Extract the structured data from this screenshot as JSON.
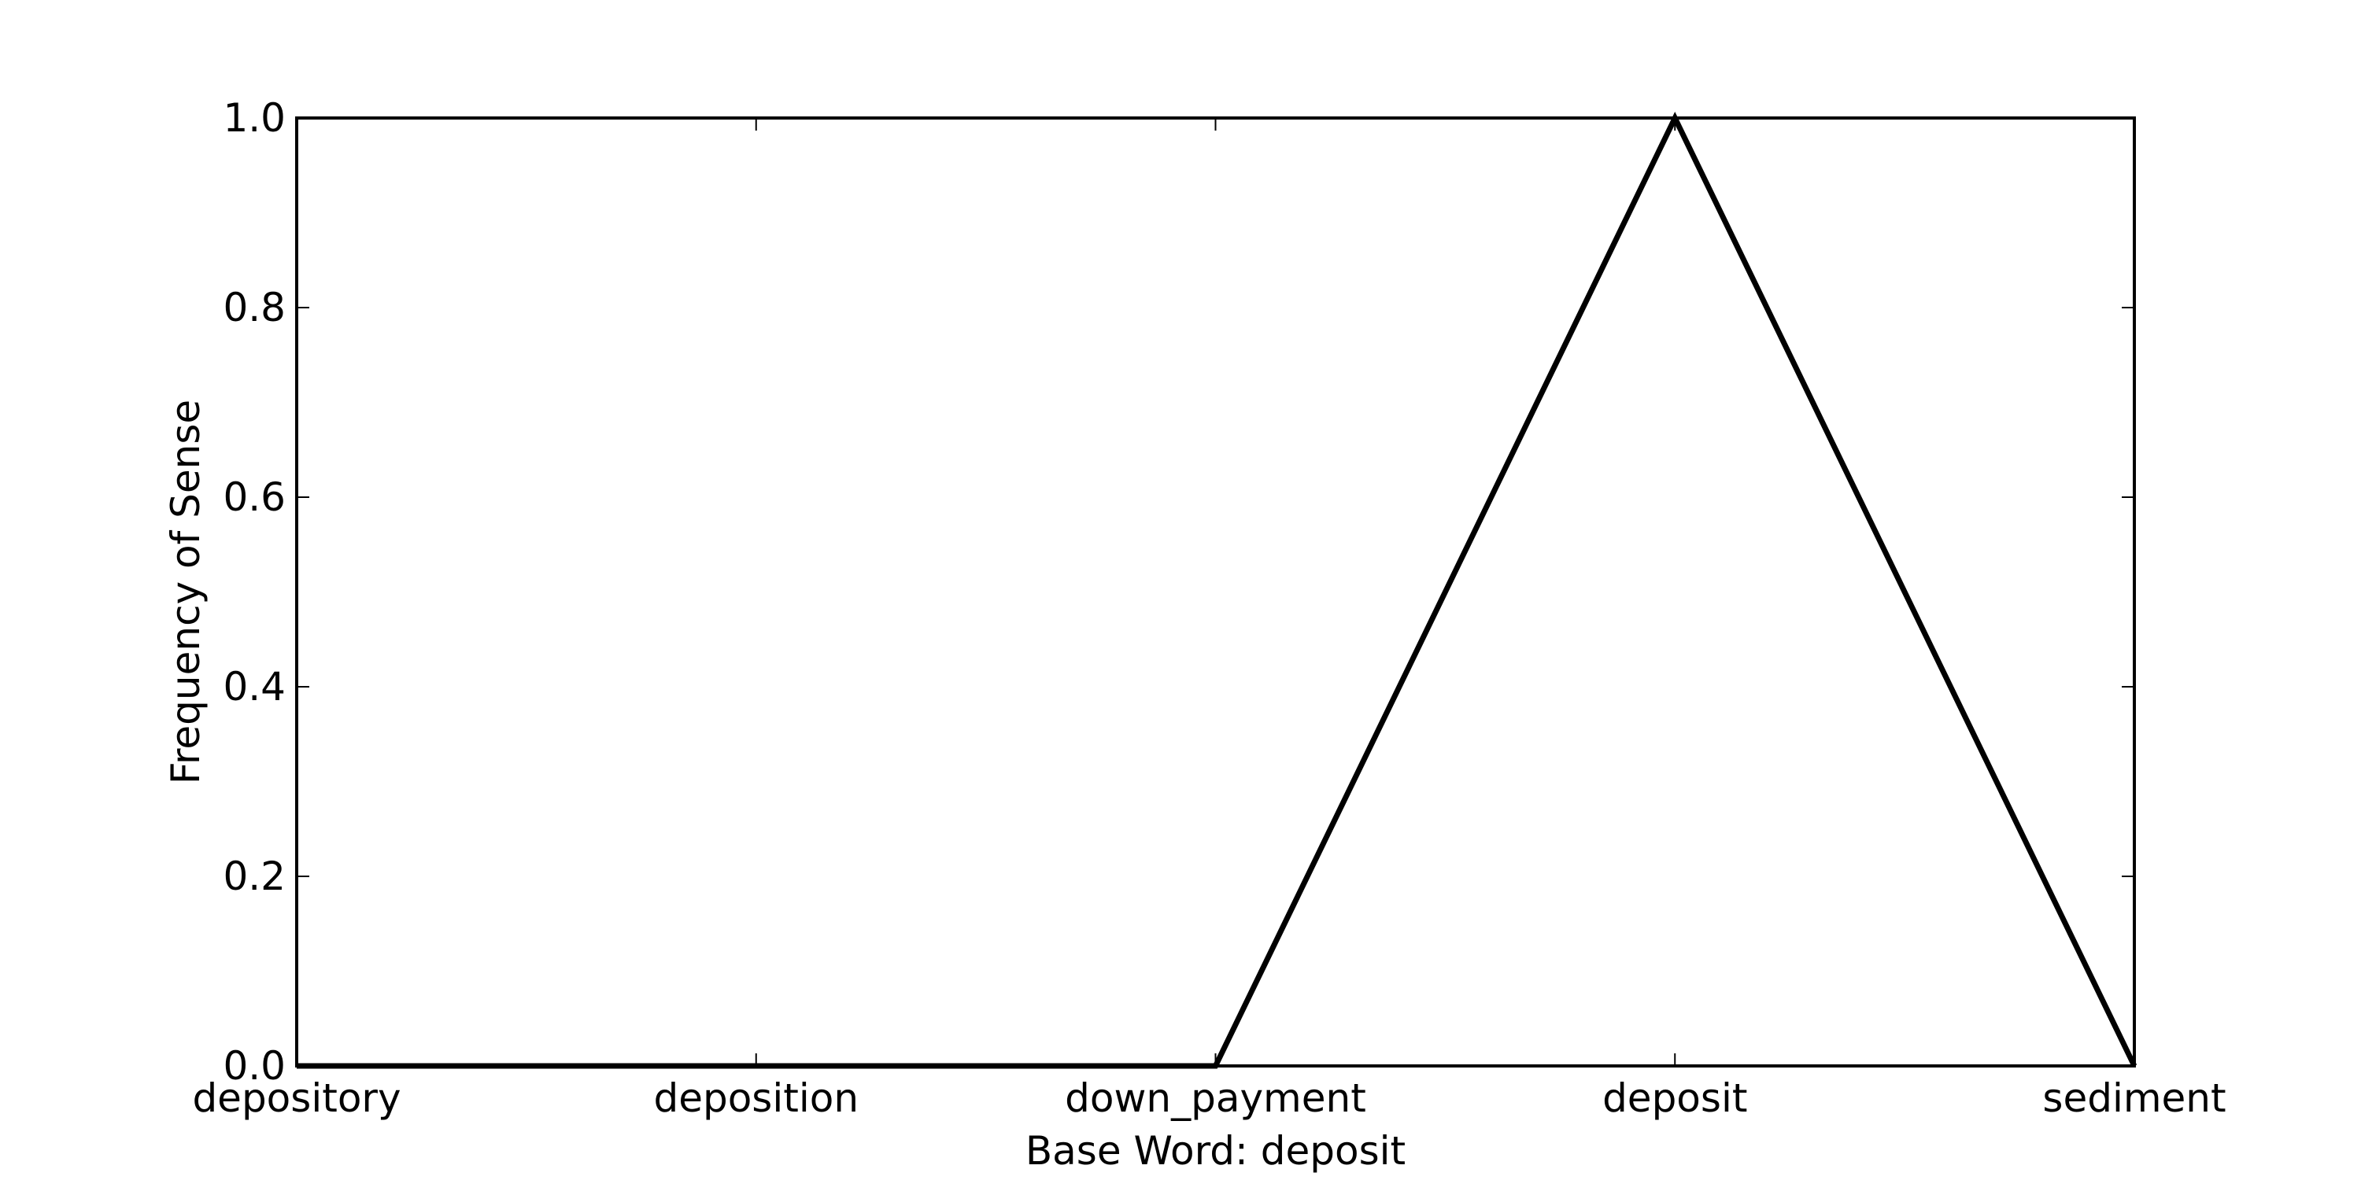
{
  "chart_data": {
    "type": "line",
    "title": "",
    "xlabel": "Base Word: deposit",
    "ylabel": "Frequency of Sense",
    "categories": [
      "depository",
      "deposition",
      "down_payment",
      "deposit",
      "sediment"
    ],
    "values": [
      0.0,
      0.0,
      0.0,
      1.0,
      0.0
    ],
    "ylim": [
      0.0,
      1.0
    ],
    "yticks": [
      "0.0",
      "0.2",
      "0.4",
      "0.6",
      "0.8",
      "1.0"
    ],
    "grid": false,
    "line_color": "#000000"
  }
}
